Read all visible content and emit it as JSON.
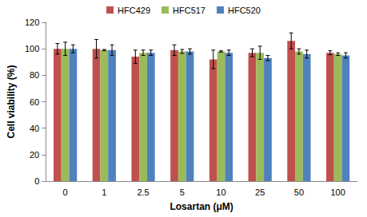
{
  "chart_data": {
    "type": "bar",
    "x_label": "Losartan (μM)",
    "y_label": "Cell viability (%)",
    "categories": [
      "0",
      "1",
      "2.5",
      "5",
      "10",
      "25",
      "50",
      "100"
    ],
    "series": [
      {
        "name": "HFC429",
        "color": "#c0504d",
        "values": [
          100,
          100,
          94,
          99,
          92,
          97,
          106,
          97
        ],
        "errors": [
          4,
          7,
          5,
          4,
          7,
          3,
          6,
          1.5
        ]
      },
      {
        "name": "HFC517",
        "color": "#9bbb59",
        "values": [
          100,
          99,
          97,
          98,
          98,
          97,
          98,
          96
        ],
        "errors": [
          5,
          0.5,
          2,
          1.5,
          0.5,
          5,
          2,
          1
        ]
      },
      {
        "name": "HFC520",
        "color": "#4f81bd",
        "values": [
          100,
          99,
          97,
          98,
          97,
          93,
          96,
          95
        ],
        "errors": [
          3,
          4,
          2,
          2,
          2,
          2,
          3,
          2
        ]
      }
    ],
    "ylim": [
      0,
      120
    ],
    "yticks": [
      0,
      20,
      40,
      60,
      80,
      100,
      120
    ],
    "grid": false,
    "legend": "top"
  }
}
